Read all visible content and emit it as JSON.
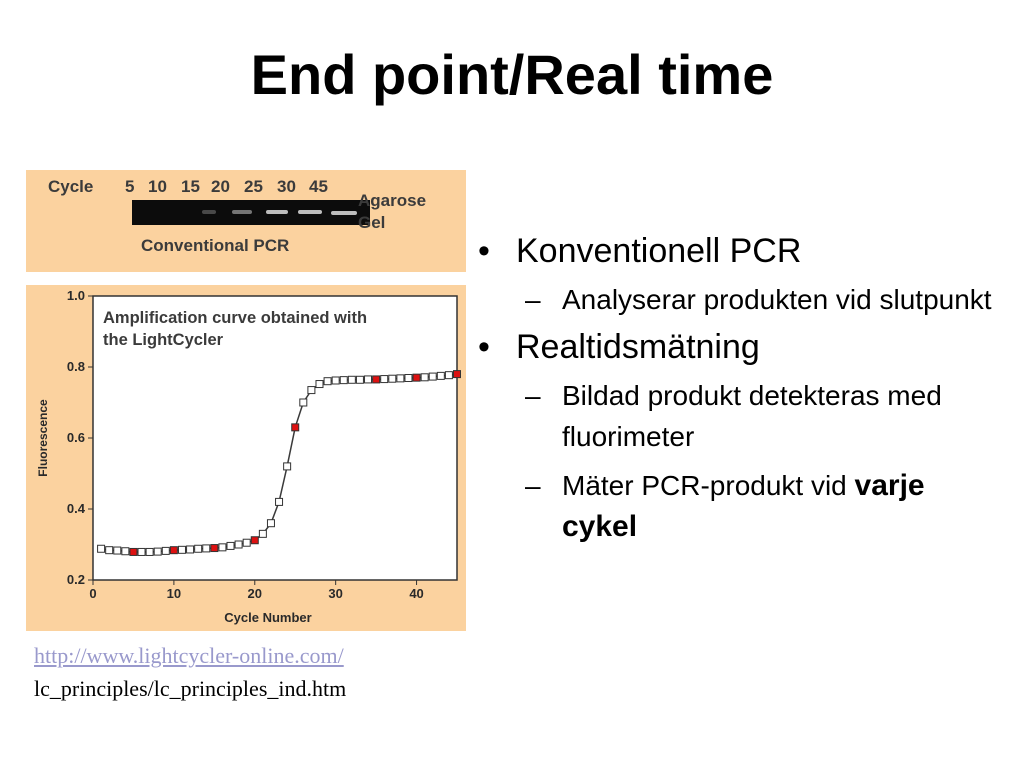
{
  "slide": {
    "title": "End point/Real time"
  },
  "gel": {
    "cycle_label": "Cycle",
    "cycles": [
      "5",
      "10",
      "15",
      "20",
      "25",
      "30",
      "45"
    ],
    "agarose_label": "Agarose",
    "gel_label": "Gel",
    "caption": "Conventional PCR"
  },
  "chart_data": {
    "type": "line",
    "title": "Amplification curve obtained with the LightCycler",
    "title_lines": [
      "Amplification curve obtained with",
      "the LightCycler"
    ],
    "xlabel": "Cycle Number",
    "ylabel": "Fluorescence",
    "xlim": [
      0,
      45
    ],
    "ylim": [
      0.2,
      1.0
    ],
    "xticks": [
      0,
      10,
      20,
      30,
      40
    ],
    "yticks": [
      0.2,
      0.4,
      0.6,
      0.8,
      1.0
    ],
    "ytick_labels": [
      "0.2",
      "0.4",
      "0.6",
      "0.8",
      "1.0"
    ],
    "grid": false,
    "colors": {
      "line": "#3a3a3a",
      "marker": "#ffffff",
      "highlight": "#dd1111",
      "background": "#ffffff"
    },
    "x": [
      1,
      2,
      3,
      4,
      5,
      6,
      7,
      8,
      9,
      10,
      11,
      12,
      13,
      14,
      15,
      16,
      17,
      18,
      19,
      20,
      21,
      22,
      23,
      24,
      25,
      26,
      27,
      28,
      29,
      30,
      31,
      32,
      33,
      34,
      35,
      36,
      37,
      38,
      39,
      40,
      41,
      42,
      43,
      44,
      45
    ],
    "y": [
      0.288,
      0.284,
      0.283,
      0.281,
      0.279,
      0.279,
      0.279,
      0.28,
      0.282,
      0.284,
      0.285,
      0.286,
      0.288,
      0.289,
      0.29,
      0.292,
      0.296,
      0.3,
      0.305,
      0.312,
      0.33,
      0.36,
      0.42,
      0.52,
      0.63,
      0.7,
      0.735,
      0.752,
      0.76,
      0.762,
      0.763,
      0.764,
      0.764,
      0.765,
      0.765,
      0.766,
      0.767,
      0.768,
      0.769,
      0.77,
      0.771,
      0.773,
      0.775,
      0.777,
      0.78
    ],
    "highlighted_x": [
      5,
      10,
      15,
      20,
      25,
      35,
      40,
      45
    ]
  },
  "bullets": [
    {
      "level": 1,
      "text": "Konventionell PCR"
    },
    {
      "level": 2,
      "text": "Analyserar produkten vid slutpunkt"
    },
    {
      "level": 1,
      "text": "Realtidsmätning"
    },
    {
      "level": 2,
      "text": "Bildad produkt detekteras med fluorimeter"
    },
    {
      "level": 2,
      "text": "Mäter PCR-produkt vid ",
      "emphasis": "varje cykel"
    }
  ],
  "source": {
    "link": "http://www.lightcycler-online.com/",
    "path": "lc_principles/lc_principles_ind.htm"
  }
}
